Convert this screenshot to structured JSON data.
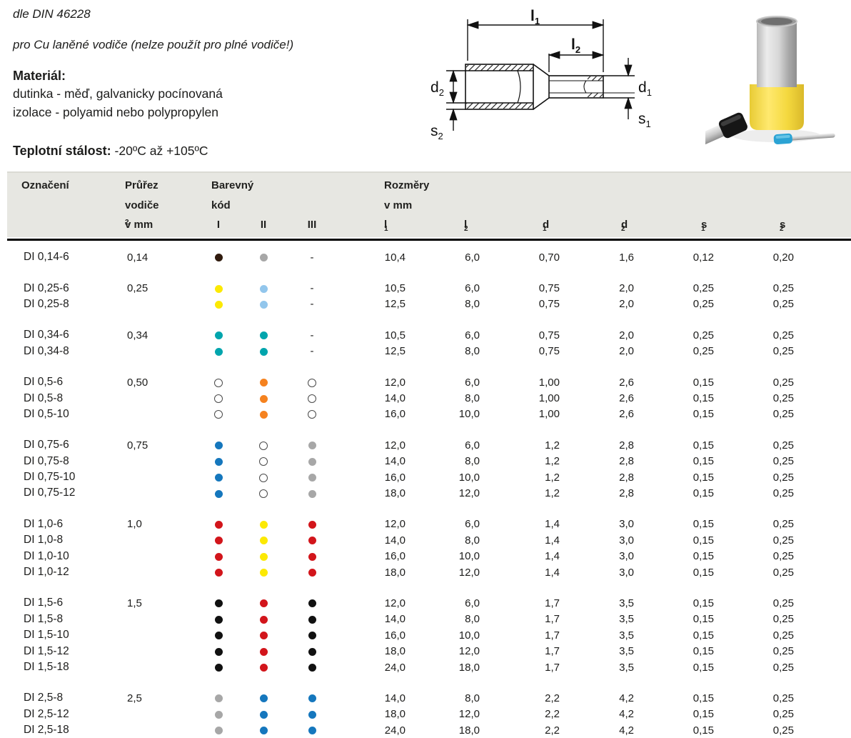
{
  "intro": {
    "standard": "dle DIN 46228",
    "usage": "pro Cu laněné vodiče (nelze použít pro plné vodiče!)",
    "material_label": "Materiál:",
    "material_line1": "dutinka - měď, galvanicky pocínovaná",
    "material_line2": "izolace - polyamid nebo polypropylen",
    "temp_label": "Teplotní stálost:",
    "temp_value": " -20ºC až +105ºC"
  },
  "diagram": {
    "dims": {
      "l1": {
        "b": "l",
        "s": "1"
      },
      "l2": {
        "b": "l",
        "s": "2"
      },
      "d1": {
        "b": "d",
        "s": "1"
      },
      "d2": {
        "b": "d",
        "s": "2"
      },
      "s1": {
        "b": "s",
        "s": "1"
      },
      "s2": {
        "b": "s",
        "s": "2"
      }
    }
  },
  "table": {
    "header": {
      "designation": "Označení",
      "cross_1": "Průřez",
      "cross_2": "vodiče",
      "cross_3": "v mm",
      "cross_3_sup": "2",
      "color_1": "Barevný",
      "color_2": "kód",
      "color_cols": [
        "I",
        "II",
        "III"
      ],
      "dims_1": "Rozměry",
      "dims_2": "v mm",
      "dims": [
        {
          "b": "l",
          "s": "1"
        },
        {
          "b": "l",
          "s": "2"
        },
        {
          "b": "d",
          "s": "1"
        },
        {
          "b": "d",
          "s": "2"
        },
        {
          "b": "s",
          "s": "1"
        },
        {
          "b": "s",
          "s": "2"
        }
      ]
    },
    "groups": [
      {
        "cross_section": "0,14",
        "rows": [
          {
            "name": "DI 0,14-6",
            "c1": "darkbrown",
            "c2": "gray",
            "c3": "-",
            "vals": [
              "10,4",
              "6,0",
              "0,70",
              "1,6",
              "0,12",
              "0,20"
            ]
          }
        ]
      },
      {
        "cross_section": "0,25",
        "rows": [
          {
            "name": "DI 0,25-6",
            "c1": "yellow",
            "c2": "lightblue",
            "c3": "-",
            "vals": [
              "10,5",
              "6,0",
              "0,75",
              "2,0",
              "0,25",
              "0,25"
            ]
          },
          {
            "name": "DI 0,25-8",
            "c1": "yellow",
            "c2": "lightblue",
            "c3": "-",
            "vals": [
              "12,5",
              "8,0",
              "0,75",
              "2,0",
              "0,25",
              "0,25"
            ]
          }
        ]
      },
      {
        "cross_section": "0,34",
        "rows": [
          {
            "name": "DI 0,34-6",
            "c1": "turquoise",
            "c2": "turquoise",
            "c3": "-",
            "vals": [
              "10,5",
              "6,0",
              "0,75",
              "2,0",
              "0,25",
              "0,25"
            ]
          },
          {
            "name": "DI 0,34-8",
            "c1": "turquoise",
            "c2": "turquoise",
            "c3": "-",
            "vals": [
              "12,5",
              "8,0",
              "0,75",
              "2,0",
              "0,25",
              "0,25"
            ]
          }
        ]
      },
      {
        "cross_section": "0,50",
        "rows": [
          {
            "name": "DI 0,5-6",
            "c1": "white",
            "c2": "orange",
            "c3": "white",
            "vals": [
              "12,0",
              "6,0",
              "1,00",
              "2,6",
              "0,15",
              "0,25"
            ]
          },
          {
            "name": "DI 0,5-8",
            "c1": "white",
            "c2": "orange",
            "c3": "white",
            "vals": [
              "14,0",
              "8,0",
              "1,00",
              "2,6",
              "0,15",
              "0,25"
            ]
          },
          {
            "name": "DI 0,5-10",
            "c1": "white",
            "c2": "orange",
            "c3": "white",
            "vals": [
              "16,0",
              "10,0",
              "1,00",
              "2,6",
              "0,15",
              "0,25"
            ]
          }
        ]
      },
      {
        "cross_section": "0,75",
        "rows": [
          {
            "name": "DI 0,75-6",
            "c1": "blue",
            "c2": "white",
            "c3": "gray",
            "vals": [
              "12,0",
              "6,0",
              "1,2",
              "2,8",
              "0,15",
              "0,25"
            ]
          },
          {
            "name": "DI 0,75-8",
            "c1": "blue",
            "c2": "white",
            "c3": "gray",
            "vals": [
              "14,0",
              "8,0",
              "1,2",
              "2,8",
              "0,15",
              "0,25"
            ]
          },
          {
            "name": "DI 0,75-10",
            "c1": "blue",
            "c2": "white",
            "c3": "gray",
            "vals": [
              "16,0",
              "10,0",
              "1,2",
              "2,8",
              "0,15",
              "0,25"
            ]
          },
          {
            "name": "DI 0,75-12",
            "c1": "blue",
            "c2": "white",
            "c3": "gray",
            "vals": [
              "18,0",
              "12,0",
              "1,2",
              "2,8",
              "0,15",
              "0,25"
            ]
          }
        ]
      },
      {
        "cross_section": "1,0",
        "rows": [
          {
            "name": "DI 1,0-6",
            "c1": "red",
            "c2": "yellow",
            "c3": "red",
            "vals": [
              "12,0",
              "6,0",
              "1,4",
              "3,0",
              "0,15",
              "0,25"
            ]
          },
          {
            "name": "DI 1,0-8",
            "c1": "red",
            "c2": "yellow",
            "c3": "red",
            "vals": [
              "14,0",
              "8,0",
              "1,4",
              "3,0",
              "0,15",
              "0,25"
            ]
          },
          {
            "name": "DI 1,0-10",
            "c1": "red",
            "c2": "yellow",
            "c3": "red",
            "vals": [
              "16,0",
              "10,0",
              "1,4",
              "3,0",
              "0,15",
              "0,25"
            ]
          },
          {
            "name": "DI 1,0-12",
            "c1": "red",
            "c2": "yellow",
            "c3": "red",
            "vals": [
              "18,0",
              "12,0",
              "1,4",
              "3,0",
              "0,15",
              "0,25"
            ]
          }
        ]
      },
      {
        "cross_section": "1,5",
        "rows": [
          {
            "name": "DI 1,5-6",
            "c1": "black",
            "c2": "red",
            "c3": "black",
            "vals": [
              "12,0",
              "6,0",
              "1,7",
              "3,5",
              "0,15",
              "0,25"
            ]
          },
          {
            "name": "DI 1,5-8",
            "c1": "black",
            "c2": "red",
            "c3": "black",
            "vals": [
              "14,0",
              "8,0",
              "1,7",
              "3,5",
              "0,15",
              "0,25"
            ]
          },
          {
            "name": "DI 1,5-10",
            "c1": "black",
            "c2": "red",
            "c3": "black",
            "vals": [
              "16,0",
              "10,0",
              "1,7",
              "3,5",
              "0,15",
              "0,25"
            ]
          },
          {
            "name": "DI 1,5-12",
            "c1": "black",
            "c2": "red",
            "c3": "black",
            "vals": [
              "18,0",
              "12,0",
              "1,7",
              "3,5",
              "0,15",
              "0,25"
            ]
          },
          {
            "name": "DI 1,5-18",
            "c1": "black",
            "c2": "red",
            "c3": "black",
            "vals": [
              "24,0",
              "18,0",
              "1,7",
              "3,5",
              "0,15",
              "0,25"
            ]
          }
        ]
      },
      {
        "cross_section": "2,5",
        "rows": [
          {
            "name": "DI 2,5-8",
            "c1": "gray",
            "c2": "blue",
            "c3": "blue",
            "vals": [
              "14,0",
              "8,0",
              "2,2",
              "4,2",
              "0,15",
              "0,25"
            ]
          },
          {
            "name": "DI 2,5-12",
            "c1": "gray",
            "c2": "blue",
            "c3": "blue",
            "vals": [
              "18,0",
              "12,0",
              "2,2",
              "4,2",
              "0,15",
              "0,25"
            ]
          },
          {
            "name": "DI 2,5-18",
            "c1": "gray",
            "c2": "blue",
            "c3": "blue",
            "vals": [
              "24,0",
              "18,0",
              "2,2",
              "4,2",
              "0,15",
              "0,25"
            ]
          }
        ]
      }
    ]
  },
  "colors": {
    "darkbrown": "#301b0e",
    "gray": "#a7a7a7",
    "yellow": "#fce903",
    "lightblue": "#92c6ec",
    "turquoise": "#00a5ad",
    "white": "#ffffff",
    "orange": "#f5821f",
    "blue": "#1577bd",
    "red": "#d2151b",
    "black": "#111111"
  }
}
